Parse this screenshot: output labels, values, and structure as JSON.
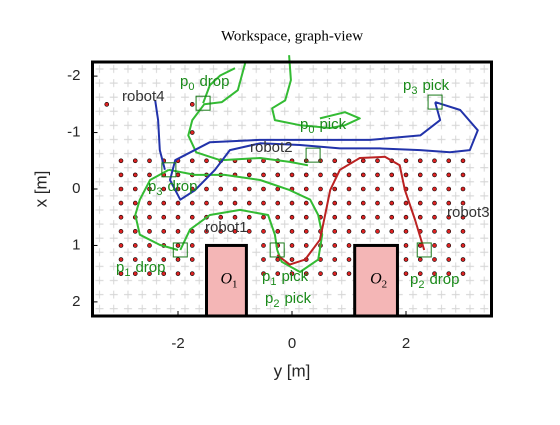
{
  "chart_data": {
    "type": "line",
    "title": "Workspace, graph-view",
    "xlabel": "y [m]",
    "ylabel": "x [m]",
    "xlim": [
      -3.5,
      3.5
    ],
    "ylim": [
      -2.25,
      2.25
    ],
    "y_reversed": true,
    "xticks": [
      -2,
      0,
      2
    ],
    "yticks": [
      -2,
      -1,
      0,
      1,
      2
    ],
    "series": [
      {
        "color": "#33bb33",
        "x": [
          -0.82,
          -0.95,
          -1.23,
          -1.54,
          -1.75,
          -1.82,
          -1.68,
          -1.26,
          -0.56,
          -0.04,
          0.28
        ],
        "values": [
          -2.24,
          -1.75,
          -1.54,
          -1.5,
          -1.22,
          -0.95,
          -0.65,
          -0.51,
          -0.55,
          -0.48,
          -0.42
        ]
      },
      {
        "color": "#33bb33",
        "x": [
          -0.05,
          -0.02,
          -0.12,
          -0.35,
          -0.3,
          0.14,
          0.67,
          0.93,
          1.19,
          0.93,
          0.49
        ],
        "values": [
          -2.37,
          -1.93,
          -1.57,
          -1.43,
          -1.22,
          -1.13,
          -1.08,
          -1.13,
          -1.25,
          -1.36,
          -1.25
        ]
      },
      {
        "color": "#33bb33",
        "x": [
          -2.16,
          -2.49,
          -2.67,
          -2.75,
          -2.67,
          -2.32,
          -2.0
        ],
        "values": [
          -0.34,
          -0.16,
          0.19,
          0.46,
          0.81,
          0.99,
          1.08
        ]
      },
      {
        "color": "#33bb33",
        "x": [
          -2.16,
          -1.7,
          -1.18,
          -0.56,
          -0.04,
          0.32,
          0.46,
          0.53,
          0.46,
          0.14,
          -0.18,
          -0.26
        ],
        "values": [
          -0.34,
          -0.25,
          -0.25,
          -0.16,
          0.02,
          0.19,
          0.46,
          0.81,
          1.25,
          1.47,
          1.29,
          1.08
        ]
      },
      {
        "color": "#33bb33",
        "x": [
          -1.56,
          -1.44,
          -1.26,
          -1.0
        ],
        "values": [
          -1.52,
          -1.84,
          -2.01,
          -2.14
        ]
      },
      {
        "color": "#33bb33",
        "x": [
          -1.96,
          -1.79,
          -1.44,
          -0.91,
          -0.42,
          -0.3,
          -0.26
        ],
        "values": [
          1.08,
          0.72,
          0.46,
          0.37,
          0.46,
          0.81,
          1.08
        ]
      },
      {
        "color": "#2233aa",
        "x": [
          2.51,
          2.95,
          3.26,
          3.12,
          2.77,
          2.25,
          1.54,
          0.84,
          0.14,
          -0.56,
          -1.09,
          -1.35,
          -1.7,
          -1.96,
          -2.14,
          -2.05,
          -1.44,
          -0.56,
          0.49,
          1.37,
          2.25,
          2.6,
          2.51
        ],
        "values": [
          -1.54,
          -1.4,
          -1.04,
          -0.69,
          -0.65,
          -0.69,
          -0.72,
          -0.72,
          -0.78,
          -0.81,
          -0.69,
          -0.34,
          0.02,
          0.19,
          -0.16,
          -0.51,
          -0.83,
          -0.87,
          -0.87,
          -0.87,
          -0.95,
          -1.22,
          -1.54
        ]
      },
      {
        "color": "#2233aa",
        "x": [
          -2.4,
          -2.35,
          -2.32,
          -2.23
        ],
        "values": [
          -1.57,
          -1.22,
          -0.69,
          -0.34
        ]
      },
      {
        "color": "#bb2222",
        "x": [
          2.32,
          2.16,
          1.98,
          1.89,
          1.63,
          1.19,
          0.84,
          0.67,
          0.58,
          0.49,
          0.23,
          -0.04,
          -0.26
        ],
        "values": [
          1.08,
          0.55,
          0.02,
          -0.42,
          -0.57,
          -0.55,
          -0.34,
          0.02,
          0.46,
          0.9,
          1.25,
          1.34,
          1.17
        ]
      }
    ],
    "node_color": "#dd2222",
    "node_rows": [
      {
        "row": -1.5,
        "cols": [
          -3.25,
          -1.75
        ]
      },
      {
        "row": -1,
        "cols": [
          -1.75
        ]
      },
      {
        "row": -0.5,
        "cols": [
          -3,
          -2.75,
          -2.5,
          -2.25,
          -2,
          -1.75,
          -1.5,
          -1.25,
          -1,
          -0.75,
          -0.5,
          -0.25,
          0,
          0.25,
          0.5,
          0.75,
          1,
          1.25,
          1.5,
          1.75,
          2,
          2.25,
          2.5,
          2.75,
          3
        ]
      },
      {
        "row": -0.25,
        "cols": [
          -3,
          -2.75,
          -2.5,
          -2.25,
          -2,
          -1.75,
          -1.5,
          -1.25,
          -1,
          -0.75,
          -0.5,
          -0.25,
          0,
          0.25,
          0.5,
          0.75,
          1,
          1.25,
          1.5,
          1.75,
          2,
          2.25,
          2.5,
          2.75,
          3
        ]
      },
      {
        "row": 0,
        "cols": [
          -3,
          -2.75,
          -2.5,
          -2.25,
          -2,
          -1.75,
          -1.5,
          -1.25,
          -1,
          -0.75,
          -0.5,
          -0.25,
          0,
          0.25,
          0.5,
          0.75,
          1,
          1.25,
          1.5,
          1.75,
          2,
          2.25,
          2.5,
          2.75,
          3
        ]
      },
      {
        "row": 0.25,
        "cols": [
          -3,
          -2.75,
          -2.5,
          -2.25,
          -2,
          -1.75,
          -1.5,
          -1.25,
          -1,
          -0.75,
          -0.5,
          -0.25,
          0,
          0.25,
          0.5,
          0.75,
          1,
          1.25,
          1.5,
          1.75,
          2,
          2.25,
          2.5,
          2.75,
          3
        ]
      },
      {
        "row": 0.5,
        "cols": [
          -3,
          -2.75,
          -2.5,
          -2.25,
          -2,
          -1.75,
          -1.5,
          -1.25,
          -1,
          -0.75,
          -0.5,
          -0.25,
          0,
          0.25,
          0.5,
          0.75,
          1,
          1.25,
          1.5,
          1.75,
          2,
          2.25,
          2.5,
          2.75,
          3
        ]
      },
      {
        "row": 0.75,
        "cols": [
          -3,
          -2.75,
          -2.5,
          -2.25,
          -2,
          -1.75,
          -1.5,
          -1.25,
          -1,
          -0.75,
          -0.5,
          -0.25,
          0,
          0.25,
          0.5,
          0.75,
          1,
          1.25,
          1.5,
          1.75,
          2,
          2.25,
          2.5,
          2.75,
          3
        ]
      },
      {
        "row": 1,
        "cols": [
          -3,
          -2.75,
          -2.5,
          -2.25,
          -2,
          -1.75,
          -0.5,
          -0.25,
          0,
          0.25,
          0.5,
          0.75,
          1,
          2,
          2.25,
          2.5,
          2.75,
          3
        ]
      },
      {
        "row": 1.25,
        "cols": [
          -3,
          -2.75,
          -2.5,
          -2.25,
          -2,
          -1.75,
          -0.5,
          -0.25,
          0,
          0.25,
          0.5,
          0.75,
          1,
          2,
          2.25,
          2.5,
          2.75,
          3
        ]
      },
      {
        "row": 1.5,
        "cols": [
          -3,
          -2.75,
          -2.5,
          -2.25,
          -2,
          -1.75,
          -0.5,
          -0.25,
          0,
          0.25,
          0.5,
          0.75,
          1,
          2,
          2.25,
          2.5,
          2.75,
          3
        ]
      }
    ],
    "markers": {
      "color": "#1a7a1a",
      "x": [
        -1.56,
        2.51,
        0.37,
        -2.16,
        -1.96,
        -0.26,
        2.32
      ],
      "values": [
        -1.52,
        -1.54,
        -0.6,
        -0.34,
        1.08,
        1.08,
        1.08
      ]
    },
    "obstacles": [
      {
        "label": "O",
        "sub": "1",
        "color": "#f4b6b6",
        "x": [
          -1.5,
          -0.8
        ],
        "y": [
          1,
          2.25
        ]
      },
      {
        "label": "O",
        "sub": "2",
        "color": "#f4b6b6",
        "x": [
          1.1,
          1.85
        ],
        "y": [
          1,
          2.25
        ]
      }
    ],
    "annotations": [
      {
        "text": "robot4",
        "color": "#333333"
      },
      {
        "symbol": "p",
        "index": "0",
        "text": "drop",
        "color": "#1a8a1a"
      },
      {
        "symbol": "p",
        "index": "3",
        "text": "pick",
        "color": "#1a8a1a"
      },
      {
        "symbol": "p",
        "index": "0",
        "text": "pick",
        "color": "#1a8a1a"
      },
      {
        "text": "robot2",
        "color": "#333333"
      },
      {
        "symbol": "p",
        "index": "3",
        "text": "drop",
        "color": "#1a8a1a"
      },
      {
        "text": "robot1",
        "color": "#333333"
      },
      {
        "text": "robot3",
        "color": "#333333"
      },
      {
        "symbol": "p",
        "index": "1",
        "text": "drop",
        "color": "#1a8a1a"
      },
      {
        "symbol": "p",
        "index": "1",
        "text": "pick",
        "color": "#1a8a1a"
      },
      {
        "symbol": "p",
        "index": "2",
        "text": "pick",
        "color": "#1a8a1a"
      },
      {
        "symbol": "p",
        "index": "2",
        "text": "drop",
        "color": "#1a8a1a"
      }
    ]
  }
}
